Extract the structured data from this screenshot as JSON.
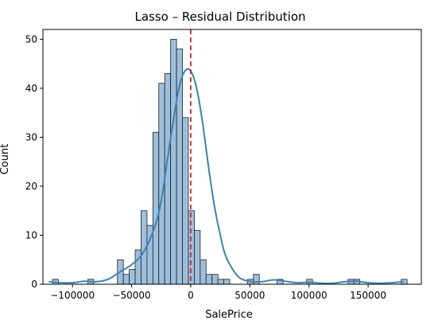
{
  "chart_data": {
    "type": "bar",
    "title": "Lasso – Residual Distribution",
    "xlabel": "SalePrice",
    "ylabel": "Count",
    "xlim": [
      -125000,
      195000
    ],
    "ylim": [
      0,
      52
    ],
    "xticks": [
      -100000,
      -50000,
      0,
      50000,
      100000,
      150000
    ],
    "xtick_labels": [
      "−100000",
      "−50000",
      "0",
      "50000",
      "100000",
      "150000"
    ],
    "yticks": [
      0,
      10,
      20,
      30,
      40,
      50
    ],
    "ytick_labels": [
      "0",
      "10",
      "20",
      "30",
      "40",
      "50"
    ],
    "bin_width": 5000,
    "bins": [
      {
        "x0": -117000,
        "count": 1
      },
      {
        "x0": -87000,
        "count": 1
      },
      {
        "x0": -62000,
        "count": 5
      },
      {
        "x0": -57000,
        "count": 2
      },
      {
        "x0": -52000,
        "count": 3
      },
      {
        "x0": -47000,
        "count": 7
      },
      {
        "x0": -42000,
        "count": 15
      },
      {
        "x0": -37000,
        "count": 12
      },
      {
        "x0": -32000,
        "count": 31
      },
      {
        "x0": -27000,
        "count": 41
      },
      {
        "x0": -22000,
        "count": 43
      },
      {
        "x0": -17000,
        "count": 50
      },
      {
        "x0": -12000,
        "count": 48
      },
      {
        "x0": -7000,
        "count": 34
      },
      {
        "x0": -2000,
        "count": 15
      },
      {
        "x0": 3000,
        "count": 11
      },
      {
        "x0": 8000,
        "count": 5
      },
      {
        "x0": 13000,
        "count": 2
      },
      {
        "x0": 18000,
        "count": 2
      },
      {
        "x0": 23000,
        "count": 1
      },
      {
        "x0": 28000,
        "count": 1
      },
      {
        "x0": 48000,
        "count": 1
      },
      {
        "x0": 53000,
        "count": 2
      },
      {
        "x0": 73000,
        "count": 1
      },
      {
        "x0": 98000,
        "count": 1
      },
      {
        "x0": 133000,
        "count": 1
      },
      {
        "x0": 138000,
        "count": 1
      },
      {
        "x0": 178000,
        "count": 1
      }
    ],
    "kde": {
      "x": [
        -120000,
        -110000,
        -100000,
        -90000,
        -80000,
        -70000,
        -60000,
        -50000,
        -40000,
        -30000,
        -25000,
        -20000,
        -15000,
        -10000,
        -5000,
        0,
        5000,
        10000,
        15000,
        20000,
        25000,
        30000,
        40000,
        50000,
        60000,
        70000,
        80000,
        90000,
        100000,
        110000,
        120000,
        130000,
        140000,
        150000,
        160000,
        170000,
        180000
      ],
      "y": [
        0.5,
        0.3,
        0.3,
        0.6,
        0.5,
        1.0,
        2.5,
        4.0,
        6.5,
        12.0,
        17.0,
        25.0,
        33.0,
        40.0,
        43.5,
        43.5,
        40.0,
        33.0,
        24.0,
        16.0,
        10.0,
        5.5,
        1.6,
        0.6,
        0.5,
        0.9,
        0.6,
        0.3,
        0.4,
        0.2,
        0.2,
        0.5,
        0.6,
        0.3,
        0.2,
        0.3,
        0.5
      ]
    },
    "reference_line": {
      "x": 0,
      "style": "dashed",
      "color": "#d62728"
    },
    "colors": {
      "bar_fill": "#9dbfdc",
      "bar_edge": "#1f1f1f",
      "kde_line": "#3b82b8",
      "axes": "#000000"
    },
    "grid": false,
    "legend": "none"
  }
}
